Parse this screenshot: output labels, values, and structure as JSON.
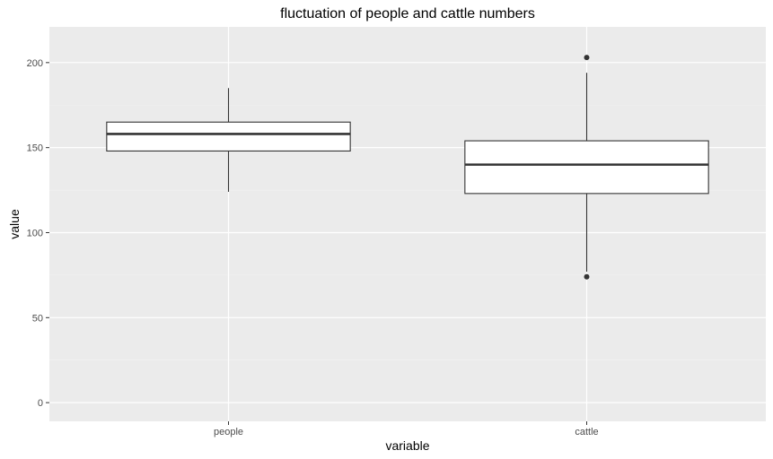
{
  "chart_data": {
    "type": "boxplot",
    "title": "fluctuation of people and cattle numbers",
    "xlabel": "variable",
    "ylabel": "value",
    "categories": [
      "people",
      "cattle"
    ],
    "ylim": [
      -11,
      221
    ],
    "yticks": [
      0,
      50,
      100,
      150,
      200
    ],
    "grid": true,
    "boxes": [
      {
        "category": "people",
        "whisker_low": 124,
        "q1": 148,
        "median": 158,
        "q3": 165,
        "whisker_high": 185,
        "outliers": []
      },
      {
        "category": "cattle",
        "whisker_low": 77,
        "q1": 123,
        "median": 140,
        "q3": 154,
        "whisker_high": 194,
        "outliers": [
          74,
          203
        ]
      }
    ],
    "colors": {
      "panel": "#ebebeb",
      "grid_major": "#ffffff",
      "grid_minor": "#f2f2f2",
      "box_fill": "#ffffff",
      "box_line": "#333333"
    }
  }
}
